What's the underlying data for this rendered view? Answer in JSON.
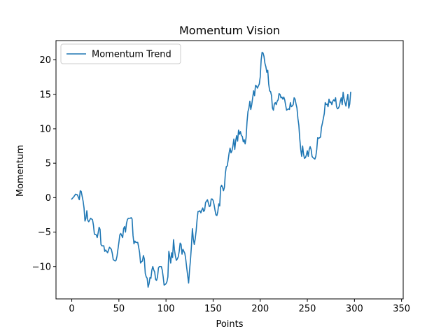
{
  "chart_data": {
    "type": "line",
    "title": "Momentum Vision",
    "xlabel": "Points",
    "ylabel": "Momentum",
    "xlim": [
      -16.75,
      351.75
    ],
    "ylim": [
      -14.7,
      22.8
    ],
    "xticks": [
      0,
      50,
      100,
      150,
      200,
      250,
      300,
      350
    ],
    "yticks": [
      -10,
      -5,
      0,
      5,
      10,
      15,
      20
    ],
    "xtick_labels": [
      "0",
      "50",
      "100",
      "150",
      "200",
      "250",
      "300",
      "350"
    ],
    "ytick_labels": [
      "−10",
      "−5",
      "0",
      "5",
      "10",
      "15",
      "20"
    ],
    "grid": false,
    "legend": "upper-left",
    "series": [
      {
        "name": "Momentum Trend",
        "color": "#1f77b4",
        "points": [
          [
            0,
            -0.2
          ],
          [
            2,
            0.1
          ],
          [
            4,
            0.5
          ],
          [
            6,
            0.4
          ],
          [
            8,
            -0.3
          ],
          [
            9,
            1.0
          ],
          [
            10,
            0.9
          ],
          [
            12,
            -0.5
          ],
          [
            13,
            -1.5
          ],
          [
            14,
            -3.4
          ],
          [
            15,
            -3.0
          ],
          [
            16,
            -1.9
          ],
          [
            17,
            -3.3
          ],
          [
            18,
            -3.5
          ],
          [
            20,
            -3.0
          ],
          [
            22,
            -3.2
          ],
          [
            23,
            -4.0
          ],
          [
            24,
            -5.3
          ],
          [
            26,
            -5.4
          ],
          [
            27,
            -5.8
          ],
          [
            28,
            -5.1
          ],
          [
            29,
            -4.3
          ],
          [
            30,
            -4.6
          ],
          [
            31,
            -6.8
          ],
          [
            32,
            -7.0
          ],
          [
            34,
            -7.0
          ],
          [
            35,
            -7.8
          ],
          [
            36,
            -7.6
          ],
          [
            38,
            -8.0
          ],
          [
            40,
            -7.2
          ],
          [
            42,
            -7.5
          ],
          [
            43,
            -8.1
          ],
          [
            44,
            -9.0
          ],
          [
            46,
            -9.2
          ],
          [
            47,
            -9.1
          ],
          [
            48,
            -8.5
          ],
          [
            50,
            -6.5
          ],
          [
            51,
            -5.4
          ],
          [
            52,
            -5.2
          ],
          [
            54,
            -5.8
          ],
          [
            55,
            -4.5
          ],
          [
            56,
            -4.2
          ],
          [
            57,
            -5.0
          ],
          [
            58,
            -3.8
          ],
          [
            59,
            -3.2
          ],
          [
            60,
            -3.0
          ],
          [
            62,
            -3.0
          ],
          [
            63,
            -2.9
          ],
          [
            64,
            -3.1
          ],
          [
            65,
            -5.5
          ],
          [
            66,
            -6.7
          ],
          [
            67,
            -6.3
          ],
          [
            68,
            -6.5
          ],
          [
            70,
            -6.5
          ],
          [
            71,
            -7.2
          ],
          [
            72,
            -8.0
          ],
          [
            73,
            -9.5
          ],
          [
            74,
            -9.3
          ],
          [
            75,
            -9.2
          ],
          [
            76,
            -8.4
          ],
          [
            77,
            -8.9
          ],
          [
            78,
            -11.0
          ],
          [
            79,
            -11.5
          ],
          [
            80,
            -11.7
          ],
          [
            81,
            -13.0
          ],
          [
            82,
            -12.5
          ],
          [
            83,
            -11.6
          ],
          [
            84,
            -11.7
          ],
          [
            85,
            -10.5
          ],
          [
            86,
            -10.0
          ],
          [
            87,
            -10.5
          ],
          [
            88,
            -10.8
          ],
          [
            89,
            -11.9
          ],
          [
            90,
            -12.0
          ],
          [
            91,
            -11.5
          ],
          [
            92,
            -10.2
          ],
          [
            93,
            -10.0
          ],
          [
            95,
            -10.0
          ],
          [
            96,
            -10.5
          ],
          [
            97,
            -11.5
          ],
          [
            98,
            -12.7
          ],
          [
            100,
            -12.5
          ],
          [
            101,
            -12.2
          ],
          [
            102,
            -11.5
          ],
          [
            103,
            -7.8
          ],
          [
            104,
            -8.5
          ],
          [
            105,
            -9.5
          ],
          [
            106,
            -8.0
          ],
          [
            107,
            -8.7
          ],
          [
            108,
            -6.1
          ],
          [
            109,
            -7.6
          ],
          [
            110,
            -8.5
          ],
          [
            111,
            -9.1
          ],
          [
            112,
            -8.9
          ],
          [
            113,
            -8.6
          ],
          [
            114,
            -7.8
          ],
          [
            115,
            -6.6
          ],
          [
            116,
            -6.8
          ],
          [
            117,
            -8.2
          ],
          [
            118,
            -7.5
          ],
          [
            120,
            -8.1
          ],
          [
            121,
            -9.0
          ],
          [
            122,
            -10.2
          ],
          [
            123,
            -11.3
          ],
          [
            124,
            -12.4
          ],
          [
            125,
            -10.5
          ],
          [
            126,
            -9.0
          ],
          [
            127,
            -7.0
          ],
          [
            128,
            -4.5
          ],
          [
            129,
            -6.0
          ],
          [
            130,
            -6.8
          ],
          [
            131,
            -6.0
          ],
          [
            132,
            -4.8
          ],
          [
            133,
            -3.2
          ],
          [
            134,
            -2.0
          ],
          [
            135,
            -2.0
          ],
          [
            136,
            -1.9
          ],
          [
            137,
            -2.2
          ],
          [
            138,
            -1.8
          ],
          [
            139,
            -1.5
          ],
          [
            140,
            -2.0
          ],
          [
            141,
            -1.8
          ],
          [
            142,
            -0.7
          ],
          [
            143,
            -0.5
          ],
          [
            144,
            -0.3
          ],
          [
            145,
            -0.8
          ],
          [
            146,
            -1.3
          ],
          [
            147,
            -1.2
          ],
          [
            148,
            -0.2
          ],
          [
            149,
            -0.2
          ],
          [
            150,
            -0.4
          ],
          [
            151,
            -1.0
          ],
          [
            152,
            -1.8
          ],
          [
            153,
            -2.5
          ],
          [
            154,
            -2.6
          ],
          [
            155,
            -2.0
          ],
          [
            156,
            -0.9
          ],
          [
            157,
            -1.2
          ],
          [
            158,
            1.5
          ],
          [
            159,
            1.8
          ],
          [
            160,
            1.5
          ],
          [
            161,
            1.0
          ],
          [
            162,
            1.5
          ],
          [
            163,
            3.5
          ],
          [
            164,
            4.5
          ],
          [
            165,
            4.6
          ],
          [
            166,
            5.5
          ],
          [
            167,
            6.5
          ],
          [
            168,
            7.2
          ],
          [
            169,
            6.5
          ],
          [
            170,
            6.8
          ],
          [
            171,
            7.5
          ],
          [
            172,
            8.5
          ],
          [
            173,
            7.0
          ],
          [
            174,
            8.3
          ],
          [
            175,
            9.0
          ],
          [
            176,
            8.2
          ],
          [
            177,
            9.8
          ],
          [
            178,
            9.2
          ],
          [
            179,
            9.6
          ],
          [
            180,
            9.0
          ],
          [
            181,
            8.9
          ],
          [
            182,
            8.1
          ],
          [
            183,
            8.4
          ],
          [
            184,
            7.8
          ],
          [
            185,
            8.7
          ],
          [
            186,
            11.0
          ],
          [
            187,
            12.5
          ],
          [
            188,
            13.0
          ],
          [
            189,
            14.0
          ],
          [
            190,
            12.8
          ],
          [
            191,
            13.5
          ],
          [
            192,
            14.5
          ],
          [
            193,
            15.5
          ],
          [
            194,
            14.8
          ],
          [
            195,
            16.3
          ],
          [
            196,
            16.2
          ],
          [
            197,
            15.9
          ],
          [
            198,
            16.2
          ],
          [
            199,
            16.5
          ],
          [
            200,
            17.5
          ],
          [
            201,
            20.0
          ],
          [
            202,
            21.1
          ],
          [
            203,
            21.0
          ],
          [
            204,
            20.5
          ],
          [
            205,
            19.5
          ],
          [
            206,
            19.0
          ],
          [
            207,
            18.2
          ],
          [
            208,
            18.5
          ],
          [
            209,
            16.5
          ],
          [
            210,
            15.5
          ],
          [
            211,
            15.4
          ],
          [
            212,
            14.8
          ],
          [
            213,
            13.0
          ],
          [
            214,
            12.7
          ],
          [
            215,
            13.6
          ],
          [
            216,
            13.8
          ],
          [
            217,
            13.5
          ],
          [
            218,
            14.0
          ],
          [
            219,
            14.2
          ],
          [
            220,
            15.1
          ],
          [
            221,
            15.0
          ],
          [
            222,
            14.5
          ],
          [
            223,
            14.6
          ],
          [
            224,
            14.3
          ],
          [
            225,
            14.6
          ],
          [
            226,
            14.2
          ],
          [
            227,
            13.4
          ],
          [
            228,
            12.7
          ],
          [
            229,
            12.8
          ],
          [
            230,
            12.9
          ],
          [
            231,
            12.8
          ],
          [
            232,
            13.8
          ],
          [
            233,
            13.2
          ],
          [
            234,
            13.3
          ],
          [
            235,
            13.5
          ],
          [
            236,
            14.5
          ],
          [
            237,
            14.3
          ],
          [
            238,
            13.6
          ],
          [
            239,
            13.0
          ],
          [
            240,
            11.5
          ],
          [
            241,
            10.5
          ],
          [
            242,
            8.5
          ],
          [
            243,
            7.0
          ],
          [
            244,
            6.0
          ],
          [
            245,
            7.5
          ],
          [
            246,
            6.3
          ],
          [
            247,
            5.7
          ],
          [
            248,
            5.8
          ],
          [
            249,
            6.2
          ],
          [
            250,
            6.8
          ],
          [
            251,
            6.0
          ],
          [
            252,
            7.0
          ],
          [
            253,
            7.4
          ],
          [
            254,
            7.0
          ],
          [
            255,
            6.0
          ],
          [
            256,
            5.8
          ],
          [
            257,
            5.7
          ],
          [
            258,
            5.6
          ],
          [
            259,
            6.0
          ],
          [
            260,
            7.0
          ],
          [
            261,
            8.7
          ],
          [
            262,
            8.6
          ],
          [
            263,
            8.7
          ],
          [
            264,
            8.8
          ],
          [
            265,
            10.2
          ],
          [
            266,
            10.8
          ],
          [
            267,
            11.5
          ],
          [
            268,
            12.2
          ],
          [
            269,
            13.8
          ],
          [
            270,
            13.5
          ],
          [
            271,
            13.6
          ],
          [
            272,
            13.2
          ],
          [
            273,
            14.3
          ],
          [
            274,
            13.8
          ],
          [
            275,
            13.9
          ],
          [
            276,
            13.5
          ],
          [
            277,
            14.0
          ],
          [
            278,
            14.2
          ],
          [
            279,
            14.0
          ],
          [
            280,
            14.5
          ],
          [
            281,
            13.2
          ],
          [
            282,
            12.9
          ],
          [
            283,
            13.0
          ],
          [
            284,
            13.3
          ],
          [
            285,
            14.0
          ],
          [
            286,
            14.5
          ],
          [
            287,
            13.5
          ],
          [
            288,
            15.3
          ],
          [
            289,
            14.3
          ],
          [
            290,
            13.8
          ],
          [
            291,
            13.3
          ],
          [
            292,
            14.2
          ],
          [
            293,
            15.0
          ],
          [
            294,
            13.0
          ],
          [
            295,
            13.6
          ],
          [
            296,
            15.3
          ]
        ]
      }
    ]
  }
}
